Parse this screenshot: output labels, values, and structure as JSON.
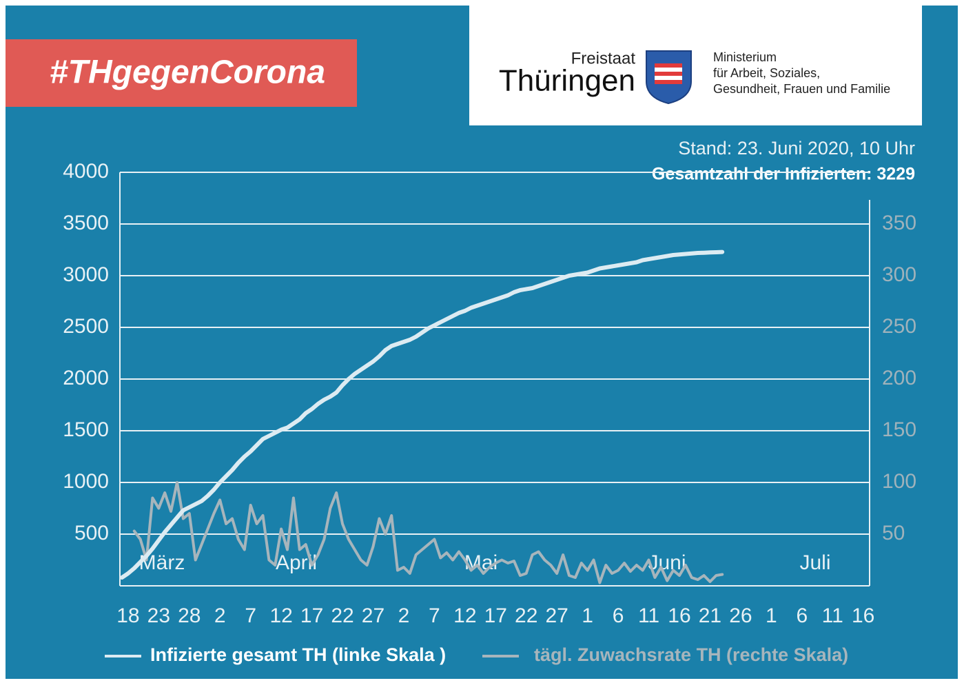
{
  "banner": "#THgegenCorona",
  "logo": {
    "freistaat": "Freistaat",
    "land": "Thüringen",
    "ministry": [
      "Ministerium",
      "für Arbeit, Soziales,",
      "Gesundheit, Frauen und Familie"
    ]
  },
  "chart_data": {
    "type": "line",
    "annotations": [
      "Stand: 23. Juni 2020, 10 Uhr",
      "Gesamtzahl der Infizierten: 3229"
    ],
    "month_labels": [
      "März",
      "April",
      "Mai",
      "Juni",
      "Juli"
    ],
    "categories": [
      null,
      "18",
      null,
      null,
      null,
      null,
      "23",
      null,
      null,
      null,
      null,
      "28",
      null,
      null,
      null,
      null,
      "2",
      null,
      null,
      null,
      null,
      "7",
      null,
      null,
      null,
      null,
      "12",
      null,
      null,
      null,
      null,
      "17",
      null,
      null,
      null,
      null,
      "22",
      null,
      null,
      null,
      null,
      "27",
      null,
      null,
      null,
      null,
      "2",
      null,
      null,
      null,
      null,
      "7",
      null,
      null,
      null,
      null,
      "12",
      null,
      null,
      null,
      null,
      "17",
      null,
      null,
      null,
      null,
      "22",
      null,
      null,
      null,
      null,
      "27",
      null,
      null,
      null,
      null,
      "1",
      null,
      null,
      null,
      null,
      "6",
      null,
      null,
      null,
      null,
      "11",
      null,
      null,
      null,
      null,
      "16",
      null,
      null,
      null,
      null,
      "21",
      null,
      null,
      null,
      null,
      "26",
      null,
      null,
      null,
      null,
      "1",
      null,
      null,
      null,
      null,
      "6",
      null,
      null,
      null,
      null,
      "11",
      null,
      null,
      null,
      null,
      "16"
    ],
    "series": [
      {
        "name": "Infizierte gesamt TH (linke Skala )",
        "color": "#dcebf2",
        "values": [
          80,
          120,
          170,
          230,
          290,
          360,
          440,
          520,
          590,
          660,
          730,
          760,
          790,
          820,
          870,
          930,
          1000,
          1060,
          1120,
          1190,
          1250,
          1300,
          1360,
          1420,
          1450,
          1480,
          1510,
          1530,
          1570,
          1610,
          1670,
          1710,
          1760,
          1800,
          1830,
          1870,
          1940,
          2000,
          2050,
          2090,
          2130,
          2170,
          2220,
          2280,
          2320,
          2340,
          2360,
          2380,
          2410,
          2450,
          2490,
          2520,
          2550,
          2580,
          2610,
          2640,
          2660,
          2690,
          2710,
          2730,
          2750,
          2770,
          2790,
          2810,
          2840,
          2860,
          2870,
          2880,
          2900,
          2920,
          2940,
          2960,
          2980,
          3000,
          3010,
          3020,
          3030,
          3050,
          3070,
          3080,
          3090,
          3100,
          3110,
          3120,
          3130,
          3150,
          3160,
          3170,
          3180,
          3190,
          3200,
          3205,
          3210,
          3215,
          3220,
          3222,
          3225,
          3227,
          3229,
          null,
          null,
          null,
          null,
          null,
          null,
          null,
          null,
          null,
          null,
          null,
          null,
          null,
          null,
          null,
          null,
          null,
          null,
          null,
          null,
          null,
          null,
          null
        ]
      },
      {
        "name": "tägl. Zuwachsrate TH (rechte Skala)",
        "color": "#a7b5bc",
        "axis": "y2",
        "values": [
          null,
          null,
          53,
          45,
          25,
          85,
          75,
          90,
          72,
          100,
          65,
          70,
          25,
          40,
          55,
          70,
          83,
          60,
          65,
          45,
          35,
          78,
          60,
          68,
          25,
          20,
          55,
          35,
          85,
          35,
          40,
          20,
          30,
          45,
          75,
          90,
          60,
          45,
          35,
          25,
          20,
          38,
          65,
          50,
          68,
          15,
          18,
          12,
          30,
          35,
          40,
          45,
          27,
          32,
          25,
          33,
          25,
          15,
          20,
          12,
          18,
          22,
          25,
          22,
          24,
          10,
          12,
          30,
          33,
          25,
          20,
          12,
          30,
          10,
          8,
          22,
          15,
          25,
          3,
          20,
          12,
          15,
          22,
          14,
          20,
          15,
          25,
          8,
          18,
          5,
          15,
          10,
          20,
          8,
          6,
          10,
          4,
          10,
          11,
          null,
          null,
          null,
          null,
          null,
          null,
          null,
          null,
          null,
          null,
          null,
          null,
          null,
          null,
          null,
          null,
          null,
          null,
          null,
          null,
          null,
          null,
          null
        ]
      }
    ],
    "ylim": [
      0,
      4000
    ],
    "yticks": [
      500,
      1000,
      1500,
      2000,
      2500,
      3000,
      3500,
      4000
    ],
    "y2lim": [
      0,
      400
    ],
    "y2ticks": [
      50,
      100,
      150,
      200,
      250,
      300,
      350
    ],
    "grid": true
  }
}
